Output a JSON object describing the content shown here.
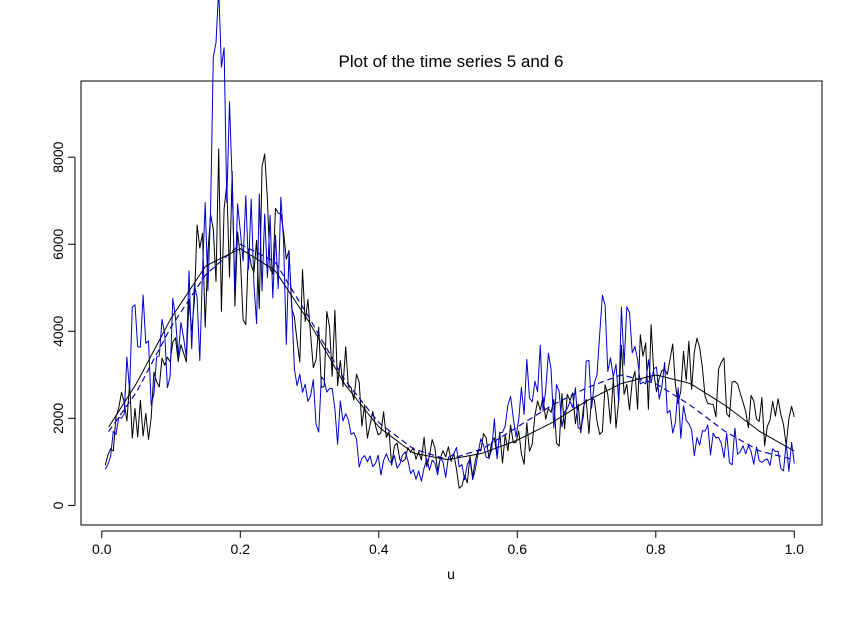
{
  "chart_data": {
    "type": "line",
    "title": "Plot of the time series 5 and 6",
    "xlabel": "u",
    "ylabel": "",
    "xlim": [
      -0.03,
      1.04
    ],
    "ylim": [
      -450,
      9750
    ],
    "xticks": [
      0.0,
      0.2,
      0.4,
      0.6,
      0.8,
      1.0
    ],
    "xtick_labels": [
      "0.0",
      "0.2",
      "0.4",
      "0.6",
      "0.8",
      "1.0"
    ],
    "yticks": [
      0,
      2000,
      4000,
      6000,
      8000
    ],
    "ytick_labels": [
      "0",
      "2000",
      "4000",
      "6000",
      "8000"
    ],
    "grid": false,
    "n_points": 256,
    "series": [
      {
        "color": "#000000",
        "style": "noisy",
        "samples": [
          [
            0.01,
            900
          ],
          [
            0.03,
            2400
          ],
          [
            0.06,
            1700
          ],
          [
            0.09,
            3000
          ],
          [
            0.12,
            3900
          ],
          [
            0.14,
            5600
          ],
          [
            0.17,
            6500
          ],
          [
            0.2,
            5400
          ],
          [
            0.23,
            6800
          ],
          [
            0.26,
            5900
          ],
          [
            0.29,
            4100
          ],
          [
            0.32,
            3800
          ],
          [
            0.35,
            3400
          ],
          [
            0.38,
            2100
          ],
          [
            0.41,
            1500
          ],
          [
            0.44,
            1000
          ],
          [
            0.47,
            1200
          ],
          [
            0.5,
            1100
          ],
          [
            0.52,
            600
          ],
          [
            0.55,
            1400
          ],
          [
            0.58,
            1300
          ],
          [
            0.61,
            1500
          ],
          [
            0.64,
            1900
          ],
          [
            0.67,
            2000
          ],
          [
            0.7,
            2300
          ],
          [
            0.73,
            2400
          ],
          [
            0.76,
            3300
          ],
          [
            0.79,
            3200
          ],
          [
            0.82,
            3100
          ],
          [
            0.85,
            2900
          ],
          [
            0.88,
            2900
          ],
          [
            0.91,
            2500
          ],
          [
            0.94,
            1900
          ],
          [
            0.97,
            2200
          ],
          [
            1.0,
            2000
          ]
        ]
      },
      {
        "color": "#0000cc",
        "style": "noisy",
        "samples": [
          [
            0.01,
            1000
          ],
          [
            0.03,
            2200
          ],
          [
            0.055,
            4900
          ],
          [
            0.07,
            2600
          ],
          [
            0.1,
            3800
          ],
          [
            0.13,
            4200
          ],
          [
            0.15,
            5500
          ],
          [
            0.17,
            9500
          ],
          [
            0.19,
            6200
          ],
          [
            0.22,
            5200
          ],
          [
            0.25,
            6600
          ],
          [
            0.27,
            4500
          ],
          [
            0.29,
            2100
          ],
          [
            0.32,
            2600
          ],
          [
            0.35,
            1600
          ],
          [
            0.38,
            1200
          ],
          [
            0.42,
            1100
          ],
          [
            0.46,
            900
          ],
          [
            0.5,
            1000
          ],
          [
            0.54,
            1100
          ],
          [
            0.57,
            1700
          ],
          [
            0.6,
            2100
          ],
          [
            0.63,
            3200
          ],
          [
            0.66,
            2100
          ],
          [
            0.69,
            2200
          ],
          [
            0.72,
            4300
          ],
          [
            0.75,
            3600
          ],
          [
            0.78,
            2800
          ],
          [
            0.81,
            2500
          ],
          [
            0.84,
            1900
          ],
          [
            0.87,
            1600
          ],
          [
            0.9,
            1400
          ],
          [
            0.93,
            1200
          ],
          [
            0.96,
            1000
          ],
          [
            1.0,
            1200
          ]
        ]
      },
      {
        "color": "#000000",
        "style": "dashed",
        "samples": [
          [
            0.01,
            1700
          ],
          [
            0.05,
            2600
          ],
          [
            0.1,
            4100
          ],
          [
            0.15,
            5300
          ],
          [
            0.2,
            6000
          ],
          [
            0.25,
            5600
          ],
          [
            0.3,
            4300
          ],
          [
            0.35,
            2900
          ],
          [
            0.4,
            1900
          ],
          [
            0.45,
            1300
          ],
          [
            0.5,
            1050
          ],
          [
            0.55,
            1300
          ],
          [
            0.6,
            1800
          ],
          [
            0.65,
            2300
          ],
          [
            0.7,
            2700
          ],
          [
            0.75,
            3000
          ],
          [
            0.8,
            2800
          ],
          [
            0.85,
            2300
          ],
          [
            0.9,
            1700
          ],
          [
            0.95,
            1250
          ],
          [
            1.0,
            1050
          ]
        ]
      },
      {
        "color": "#0000cc",
        "style": "dashed",
        "samples": [
          [
            0.01,
            1700
          ],
          [
            0.05,
            2600
          ],
          [
            0.1,
            4100
          ],
          [
            0.15,
            5300
          ],
          [
            0.2,
            6000
          ],
          [
            0.25,
            5600
          ],
          [
            0.3,
            4300
          ],
          [
            0.35,
            2900
          ],
          [
            0.4,
            1900
          ],
          [
            0.45,
            1300
          ],
          [
            0.5,
            1050
          ],
          [
            0.55,
            1300
          ],
          [
            0.6,
            1800
          ],
          [
            0.65,
            2300
          ],
          [
            0.7,
            2700
          ],
          [
            0.75,
            3000
          ],
          [
            0.8,
            2800
          ],
          [
            0.85,
            2300
          ],
          [
            0.9,
            1700
          ],
          [
            0.95,
            1250
          ],
          [
            1.0,
            1050
          ]
        ]
      },
      {
        "color": "#000000",
        "style": "solid",
        "samples": [
          [
            0.01,
            1800
          ],
          [
            0.05,
            2800
          ],
          [
            0.1,
            4300
          ],
          [
            0.15,
            5500
          ],
          [
            0.2,
            5900
          ],
          [
            0.25,
            5400
          ],
          [
            0.3,
            4200
          ],
          [
            0.35,
            2800
          ],
          [
            0.4,
            1800
          ],
          [
            0.45,
            1200
          ],
          [
            0.5,
            1050
          ],
          [
            0.55,
            1200
          ],
          [
            0.6,
            1500
          ],
          [
            0.65,
            1900
          ],
          [
            0.7,
            2400
          ],
          [
            0.75,
            2800
          ],
          [
            0.8,
            3000
          ],
          [
            0.85,
            2800
          ],
          [
            0.9,
            2300
          ],
          [
            0.95,
            1700
          ],
          [
            1.0,
            1250
          ]
        ]
      }
    ]
  }
}
